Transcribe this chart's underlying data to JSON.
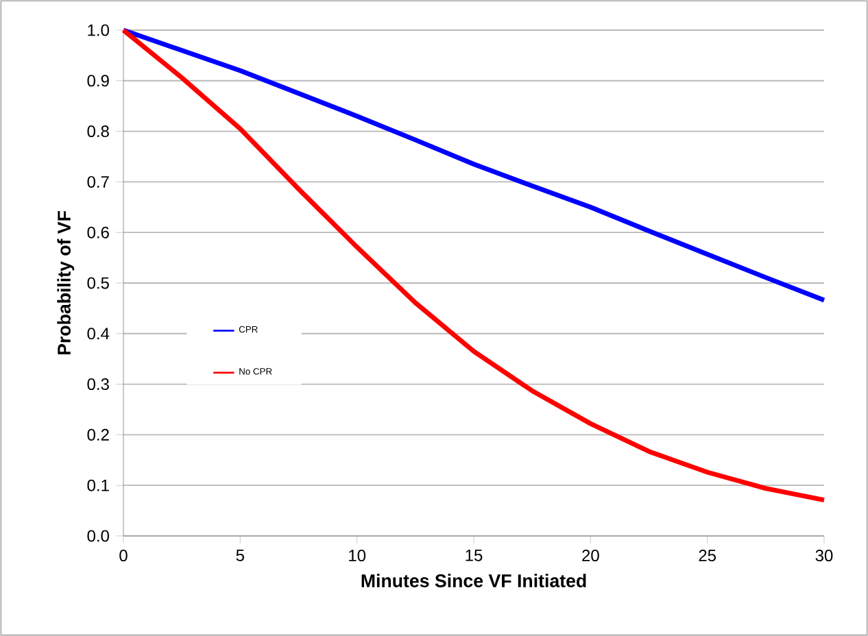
{
  "chart_data": {
    "type": "line",
    "xlabel": "Minutes Since VF Initiated",
    "ylabel": "Probability of VF",
    "x": [
      0,
      2.5,
      5,
      7.5,
      10,
      12.5,
      15,
      17.5,
      20,
      22.5,
      25,
      27.5,
      30
    ],
    "series": [
      {
        "name": "CPR",
        "color": "#0000ff",
        "values": [
          1.0,
          0.96,
          0.92,
          0.875,
          0.83,
          0.783,
          0.735,
          0.692,
          0.65,
          0.603,
          0.557,
          0.511,
          0.466
        ]
      },
      {
        "name": "No CPR",
        "color": "#ff0000",
        "values": [
          1.0,
          0.906,
          0.805,
          0.686,
          0.571,
          0.461,
          0.365,
          0.287,
          0.222,
          0.167,
          0.126,
          0.094,
          0.071
        ]
      }
    ],
    "xlim": [
      0,
      30
    ],
    "ylim": [
      0,
      1.0
    ],
    "xticks": [
      0,
      5,
      10,
      15,
      20,
      25,
      30
    ],
    "yticks": [
      {
        "value": 0,
        "label": "0.0"
      },
      {
        "value": 0.1,
        "label": "0.1"
      },
      {
        "value": 0.2,
        "label": "0.2"
      },
      {
        "value": 0.3,
        "label": "0.3"
      },
      {
        "value": 0.4,
        "label": "0.4"
      },
      {
        "value": 0.5,
        "label": "0.5"
      },
      {
        "value": 0.6,
        "label": "0.6"
      },
      {
        "value": 0.7,
        "label": "0.7"
      },
      {
        "value": 0.8,
        "label": "0.8"
      },
      {
        "value": 0.9,
        "label": "0.9"
      },
      {
        "value": 1.0,
        "label": "1.0"
      }
    ],
    "grid": "y",
    "legend": "left",
    "marker": "none",
    "line_style": "solid"
  }
}
